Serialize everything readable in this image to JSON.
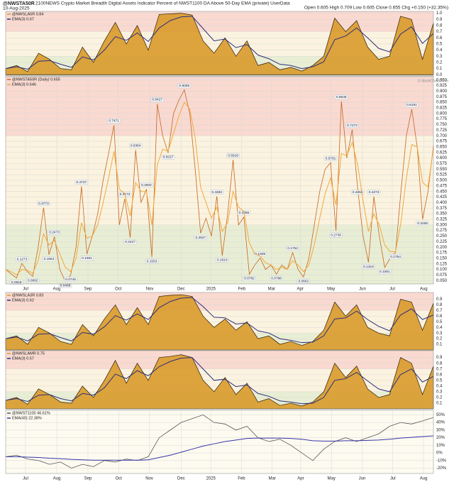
{
  "header": {
    "title": "@NWSTA50R",
    "subtitle": "2100NEWS Crypto Market Breadth Digital Assets Indicator Percent of NWST1100 DA Above 50-Day EMA (private) UserData",
    "date": "10-Aug-2025",
    "quote": "Open 0.605  High 0.709  Low 0.605  Close 0.655  Chg +0.150 (+32.35%)",
    "watermark": "© StockCharts.com"
  },
  "chart_data": [
    {
      "type": "area",
      "ylim": [
        -0.02,
        1.03
      ],
      "yticks": [
        {
          "value": 0,
          "label": "0.0"
        },
        0.1,
        0.2,
        0.3,
        0.4,
        0.5,
        0.6,
        0.7,
        0.8,
        0.9,
        {
          "value": 1,
          "label": "1.0"
        }
      ],
      "bands": [
        {
          "from": 0.7,
          "to": 1.03,
          "color": "#f9d9d0"
        },
        {
          "from": 0.3,
          "to": 0.7,
          "color": "#fbf3df"
        },
        {
          "from": -0.02,
          "to": 0.3,
          "color": "#e8eed4"
        }
      ],
      "series": [
        {
          "name": "@NWSLA5R 0.84",
          "color": "#d99a2b",
          "values": [
            0.1,
            0.15,
            0.05,
            0.35,
            0.25,
            0.1,
            0.08,
            0.45,
            0.2,
            0.55,
            0.85,
            0.5,
            0.8,
            0.4,
            0.98,
            0.99,
            1.0,
            0.97,
            0.55,
            0.35,
            0.6,
            0.3,
            0.55,
            0.15,
            0.2,
            0.08,
            0.12,
            0.06,
            0.15,
            0.3,
            0.92,
            0.7,
            0.88,
            0.45,
            0.25,
            0.3,
            0.95,
            0.9,
            0.25,
            0.84
          ]
        },
        {
          "name": "EMA(3) 0.67",
          "color": "#2b2f7a",
          "values": [
            0.1,
            0.13,
            0.09,
            0.22,
            0.23,
            0.17,
            0.12,
            0.29,
            0.24,
            0.4,
            0.62,
            0.56,
            0.68,
            0.54,
            0.76,
            0.88,
            0.94,
            0.95,
            0.75,
            0.55,
            0.58,
            0.44,
            0.49,
            0.32,
            0.26,
            0.17,
            0.15,
            0.1,
            0.13,
            0.21,
            0.57,
            0.63,
            0.76,
            0.6,
            0.43,
            0.37,
            0.66,
            0.78,
            0.51,
            0.67
          ]
        }
      ]
    },
    {
      "type": "line",
      "ylim": [
        0.035,
        0.965
      ],
      "yticks": [
        {
          "value": 0.05,
          "label": "0.050"
        },
        {
          "value": 0.075,
          "label": "0.075"
        },
        {
          "value": 0.1,
          "label": "0.100"
        },
        {
          "value": 0.125,
          "label": "0.125"
        },
        {
          "value": 0.15,
          "label": "0.150"
        },
        {
          "value": 0.175,
          "label": "0.175"
        },
        {
          "value": 0.2,
          "label": "0.200"
        },
        {
          "value": 0.225,
          "label": "0.225"
        },
        {
          "value": 0.25,
          "label": "0.250"
        },
        {
          "value": 0.275,
          "label": "0.275"
        },
        {
          "value": 0.3,
          "label": "0.300"
        },
        {
          "value": 0.325,
          "label": "0.325"
        },
        {
          "value": 0.35,
          "label": "0.350"
        },
        {
          "value": 0.375,
          "label": "0.375"
        },
        {
          "value": 0.4,
          "label": "0.400"
        },
        {
          "value": 0.425,
          "label": "0.425"
        },
        {
          "value": 0.45,
          "label": "0.450"
        },
        {
          "value": 0.475,
          "label": "0.475"
        },
        {
          "value": 0.5,
          "label": "0.500"
        },
        {
          "value": 0.525,
          "label": "0.525"
        },
        {
          "value": 0.55,
          "label": "0.550"
        },
        {
          "value": 0.575,
          "label": "0.575"
        },
        {
          "value": 0.6,
          "label": "0.600"
        },
        {
          "value": 0.625,
          "label": "0.625"
        },
        {
          "value": 0.65,
          "label": "0.650"
        },
        {
          "value": 0.675,
          "label": "0.675"
        },
        {
          "value": 0.7,
          "label": "0.700"
        },
        {
          "value": 0.725,
          "label": "0.725"
        },
        {
          "value": 0.75,
          "label": "0.750"
        },
        {
          "value": 0.775,
          "label": "0.775"
        },
        {
          "value": 0.8,
          "label": "0.800"
        },
        {
          "value": 0.825,
          "label": "0.825"
        },
        {
          "value": 0.85,
          "label": "0.850"
        },
        {
          "value": 0.875,
          "label": "0.875"
        },
        {
          "value": 0.9,
          "label": "0.900"
        },
        {
          "value": 0.925,
          "label": "0.925"
        },
        {
          "value": 0.95,
          "label": "0.950"
        }
      ],
      "xticks": [
        {
          "value": 3.67,
          "label": "Jul"
        },
        {
          "value": 9.43,
          "label": "Aug"
        },
        {
          "value": 15.2,
          "label": "Sep"
        },
        {
          "value": 20.8,
          "label": "Oct"
        },
        {
          "value": 26.6,
          "label": "Nov"
        },
        {
          "value": 32.4,
          "label": "Dec"
        },
        {
          "value": 37.9,
          "label": "2025"
        },
        {
          "value": 43.6,
          "label": "Feb"
        },
        {
          "value": 49.1,
          "label": "Mar"
        },
        {
          "value": 54.4,
          "label": "Apr"
        },
        {
          "value": 60.1,
          "label": "May"
        },
        {
          "value": 65.9,
          "label": "Jun"
        },
        {
          "value": 71.4,
          "label": "Jul"
        },
        {
          "value": 77.2,
          "label": "Aug"
        }
      ],
      "bands": [
        {
          "from": 0.7,
          "to": 0.965,
          "color": "#f9d9d0"
        },
        {
          "from": 0.3,
          "to": 0.7,
          "color": "#fbf3df"
        },
        {
          "from": 0.035,
          "to": 0.3,
          "color": "#e8eed4"
        }
      ],
      "series": [
        {
          "name": "@NWSTA50R (Daily) 0.655",
          "color": "#c8641e",
          "values": [
            0.1,
            0.08,
            0.0618,
            0.1273,
            0.09,
            0.0692,
            0.2,
            0.3773,
            0.1664,
            0.2473,
            0.1,
            0.0468,
            0.0745,
            0.2,
            0.4727,
            0.1691,
            0.25,
            0.35,
            0.5,
            0.62,
            0.7471,
            0.3,
            0.4173,
            0.2427,
            0.6364,
            0.4,
            0.4602,
            0.1553,
            0.8427,
            0.7,
            0.6227,
            0.8,
            0.86,
            0.9055,
            0.8,
            0.55,
            0.2627,
            0.33,
            0.25,
            0.4282,
            0.1618,
            0.35,
            0.5918,
            0.3,
            0.3355,
            0.0782,
            0.12,
            0.1509,
            0.1,
            0.12,
            0.0788,
            0.12,
            0.1,
            0.1762,
            0.1,
            0.0662,
            0.15,
            0.3,
            0.45,
            0.55,
            0.5791,
            0.2736,
            0.8545,
            0.6,
            0.7273,
            0.4655,
            0.25,
            0.1318,
            0.4273,
            0.25,
            0.1091,
            0.15,
            0.1764,
            0.45,
            0.7,
            0.8191,
            0.65,
            0.3255,
            0.45,
            0.655
          ],
          "value_labels": [
            null,
            null,
            "0.0618",
            "0.1273",
            null,
            "0.0692",
            null,
            "0.3773",
            "0.1664",
            "0.2473",
            null,
            "0.0468",
            "0.0745",
            null,
            "0.4727",
            "0.1691",
            null,
            null,
            null,
            null,
            "0.7471",
            null,
            "0.4173",
            "0.2427",
            "0.6364",
            null,
            "0.4602",
            "0.1553",
            "0.8427",
            null,
            "0.6227",
            null,
            null,
            "0.9055",
            null,
            null,
            "0.2627",
            null,
            null,
            "0.4282",
            "0.1618",
            null,
            "0.5918",
            null,
            "0.3355",
            "0.0782",
            null,
            "0.1509",
            null,
            null,
            "0.0788",
            null,
            null,
            "0.1762",
            null,
            "0.0662",
            null,
            null,
            null,
            null,
            "0.5791",
            "0.2736",
            "0.8545",
            null,
            "0.7273",
            "0.4655",
            null,
            "0.1318",
            "0.4273",
            null,
            "0.1091",
            null,
            "0.1764",
            null,
            null,
            "0.8191",
            null,
            "0.3255",
            null,
            null
          ]
        },
        {
          "name": "EMA(3) 0.646",
          "color": "#f2a93b",
          "values": [
            0.1,
            0.09,
            0.076,
            0.1,
            0.096,
            0.083,
            0.14,
            0.26,
            0.21,
            0.23,
            0.17,
            0.11,
            0.09,
            0.15,
            0.31,
            0.24,
            0.25,
            0.3,
            0.4,
            0.51,
            0.63,
            0.46,
            0.44,
            0.34,
            0.49,
            0.45,
            0.45,
            0.3,
            0.57,
            0.64,
            0.63,
            0.71,
            0.79,
            0.85,
            0.82,
            0.69,
            0.47,
            0.4,
            0.33,
            0.38,
            0.27,
            0.31,
            0.45,
            0.38,
            0.36,
            0.22,
            0.17,
            0.16,
            0.13,
            0.12,
            0.1,
            0.11,
            0.1,
            0.14,
            0.12,
            0.09,
            0.12,
            0.21,
            0.33,
            0.44,
            0.51,
            0.39,
            0.62,
            0.61,
            0.67,
            0.57,
            0.41,
            0.27,
            0.35,
            0.3,
            0.21,
            0.18,
            0.18,
            0.31,
            0.51,
            0.66,
            0.65,
            0.49,
            0.47,
            0.646
          ]
        }
      ]
    },
    {
      "type": "area",
      "ylim": [
        0,
        1.02
      ],
      "yticks": [
        0.1,
        0.2,
        0.3,
        0.4,
        0.5,
        0.6,
        0.7,
        0.8,
        0.9
      ],
      "bands": [
        {
          "from": 0.7,
          "to": 1.02,
          "color": "#f9d9d0"
        },
        {
          "from": 0.3,
          "to": 0.7,
          "color": "#fbf3df"
        },
        {
          "from": 0,
          "to": 0.3,
          "color": "#e8eed4"
        }
      ],
      "series": [
        {
          "name": "@NWSLA3R 0.83",
          "color": "#d99a2b",
          "values": [
            0.2,
            0.25,
            0.1,
            0.4,
            0.3,
            0.15,
            0.1,
            0.45,
            0.25,
            0.55,
            0.8,
            0.45,
            0.75,
            0.45,
            0.95,
            0.97,
            0.98,
            0.95,
            0.6,
            0.4,
            0.55,
            0.35,
            0.5,
            0.2,
            0.25,
            0.1,
            0.15,
            0.08,
            0.15,
            0.35,
            0.85,
            0.6,
            0.8,
            0.4,
            0.3,
            0.25,
            0.9,
            0.85,
            0.35,
            0.83
          ]
        },
        {
          "name": "EMA(3) 0.62",
          "color": "#2b2f7a",
          "values": [
            0.2,
            0.23,
            0.16,
            0.28,
            0.29,
            0.22,
            0.16,
            0.31,
            0.28,
            0.41,
            0.61,
            0.53,
            0.64,
            0.54,
            0.75,
            0.86,
            0.92,
            0.93,
            0.77,
            0.58,
            0.57,
            0.46,
            0.48,
            0.34,
            0.3,
            0.2,
            0.17,
            0.13,
            0.14,
            0.25,
            0.55,
            0.57,
            0.69,
            0.54,
            0.42,
            0.34,
            0.62,
            0.73,
            0.54,
            0.62
          ]
        }
      ]
    },
    {
      "type": "area",
      "ylim": [
        0,
        1.02
      ],
      "yticks": [
        0.1,
        0.2,
        0.3,
        0.4,
        0.5,
        0.6,
        0.7,
        0.8,
        0.9
      ],
      "bands": [
        {
          "from": 0.7,
          "to": 1.02,
          "color": "#f9d9d0"
        },
        {
          "from": 0.3,
          "to": 0.7,
          "color": "#fbf3df"
        },
        {
          "from": 0,
          "to": 0.3,
          "color": "#e8eed4"
        }
      ],
      "series": [
        {
          "name": "@NWSLAMR 0.75",
          "color": "#d99a2b",
          "values": [
            0.15,
            0.2,
            0.08,
            0.35,
            0.25,
            0.12,
            0.1,
            0.4,
            0.2,
            0.5,
            0.85,
            0.45,
            0.8,
            0.5,
            0.9,
            0.92,
            0.95,
            0.9,
            0.5,
            0.3,
            0.55,
            0.25,
            0.45,
            0.12,
            0.18,
            0.06,
            0.1,
            0.05,
            0.12,
            0.3,
            0.8,
            0.55,
            0.75,
            0.35,
            0.2,
            0.25,
            0.9,
            0.8,
            0.25,
            0.75
          ]
        },
        {
          "name": "EMA(3) 0.57",
          "color": "#2b2f7a",
          "values": [
            0.15,
            0.18,
            0.13,
            0.24,
            0.25,
            0.18,
            0.14,
            0.27,
            0.24,
            0.37,
            0.61,
            0.53,
            0.67,
            0.58,
            0.74,
            0.83,
            0.89,
            0.9,
            0.7,
            0.5,
            0.52,
            0.39,
            0.42,
            0.27,
            0.22,
            0.14,
            0.12,
            0.09,
            0.1,
            0.2,
            0.5,
            0.53,
            0.64,
            0.49,
            0.35,
            0.3,
            0.6,
            0.7,
            0.47,
            0.57
          ]
        }
      ]
    },
    {
      "type": "line",
      "ylim": [
        -27,
        56
      ],
      "yticks": [
        {
          "value": -20,
          "label": "-20%"
        },
        {
          "value": -10,
          "label": "-10%"
        },
        {
          "value": 0,
          "label": "0%"
        },
        {
          "value": 10,
          "label": "10%"
        },
        {
          "value": 20,
          "label": "20%"
        },
        {
          "value": 30,
          "label": "30%"
        },
        {
          "value": 40,
          "label": "40%"
        },
        {
          "value": 50,
          "label": "50%"
        }
      ],
      "xticks": [
        {
          "value": 1.81,
          "label": "Jul"
        },
        {
          "value": 4.66,
          "label": "Aug"
        },
        {
          "value": 7.5,
          "label": "Sep"
        },
        {
          "value": 10.3,
          "label": "Oct"
        },
        {
          "value": 13.1,
          "label": "Nov"
        },
        {
          "value": 16.0,
          "label": "Dec"
        },
        {
          "value": 18.7,
          "label": "2025"
        },
        {
          "value": 21.5,
          "label": "Feb"
        },
        {
          "value": 24.3,
          "label": "Mar"
        },
        {
          "value": 26.9,
          "label": "Apr"
        },
        {
          "value": 29.7,
          "label": "May"
        },
        {
          "value": 32.5,
          "label": "Jun"
        },
        {
          "value": 35.3,
          "label": "Jul"
        },
        {
          "value": 38.1,
          "label": "Aug"
        }
      ],
      "bands": [
        {
          "from": -27,
          "to": 56,
          "color": "#fdfbf0"
        }
      ],
      "series": [
        {
          "name": "@NWST1100 46.61%",
          "color": "#555555",
          "values": [
            -5,
            -3,
            -8,
            -10,
            -15,
            -12,
            -20,
            -15,
            -18,
            -10,
            -12,
            -8,
            -10,
            -5,
            20,
            30,
            40,
            45,
            50,
            40,
            38,
            30,
            35,
            20,
            15,
            18,
            10,
            0,
            -10,
            5,
            15,
            20,
            15,
            20,
            25,
            35,
            40,
            38,
            42,
            46.61
          ]
        },
        {
          "name": "EMA(40) 22.38%",
          "color": "#3535a8",
          "values": [
            -5,
            -5,
            -5.5,
            -6,
            -7,
            -7.5,
            -8.5,
            -9,
            -9.5,
            -9.5,
            -9.5,
            -9.5,
            -9.5,
            -9,
            -6,
            -3,
            1,
            5,
            9,
            12,
            15,
            17,
            19,
            19.5,
            19.5,
            19.5,
            19,
            18,
            16,
            15.5,
            15.5,
            16,
            16,
            16.5,
            17,
            18,
            19.5,
            20.5,
            21.5,
            22.38
          ]
        }
      ]
    }
  ]
}
